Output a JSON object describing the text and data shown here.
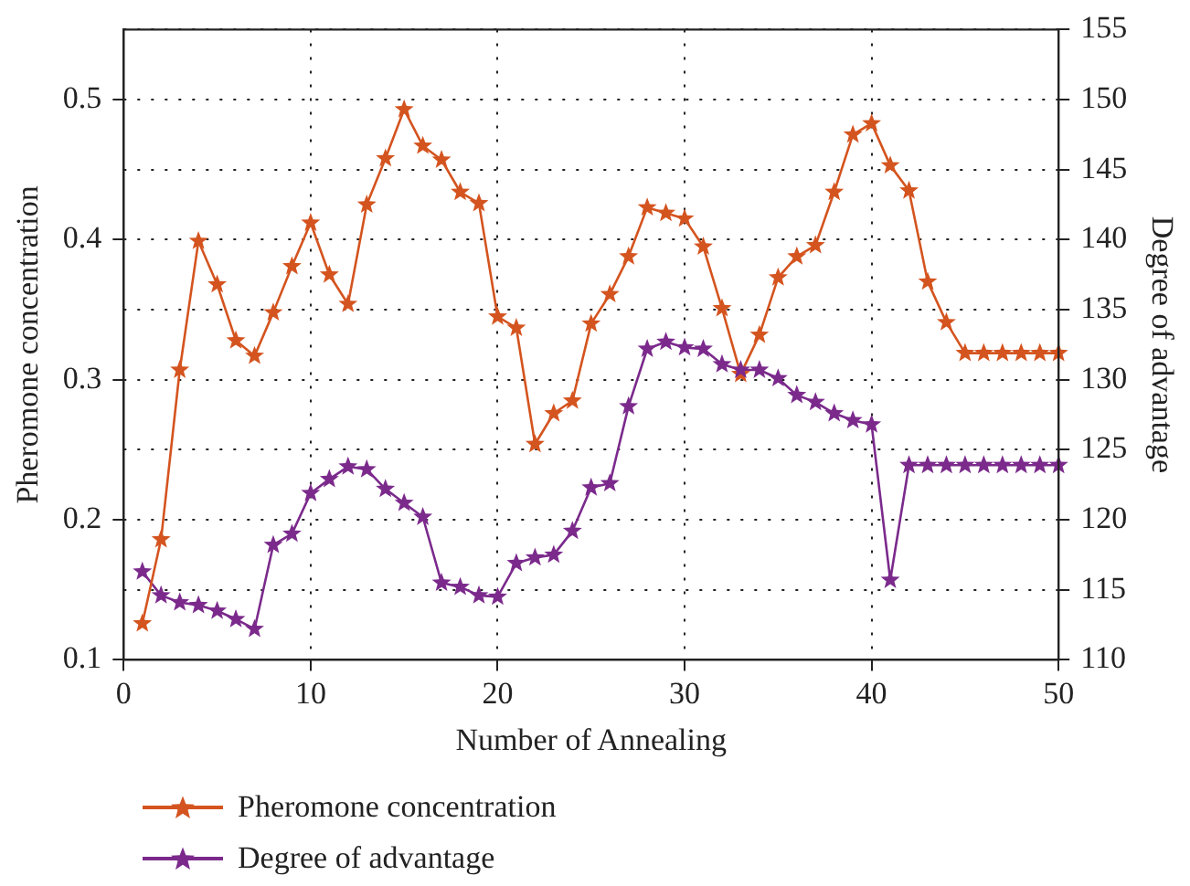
{
  "chart_data": {
    "type": "line",
    "xlabel": "Number of Annealing",
    "ylabel": "Pheromone concentration",
    "y2label": "Degree of advantage",
    "x": [
      1,
      2,
      3,
      4,
      5,
      6,
      7,
      8,
      9,
      10,
      11,
      12,
      13,
      14,
      15,
      16,
      17,
      18,
      19,
      20,
      21,
      22,
      23,
      24,
      25,
      26,
      27,
      28,
      29,
      30,
      31,
      32,
      33,
      34,
      35,
      36,
      37,
      38,
      39,
      40,
      41,
      42,
      43,
      44,
      45,
      46,
      47,
      48,
      49,
      50
    ],
    "series": [
      {
        "name": "Pheromone concentration",
        "color": "#d4541f",
        "values": [
          0.126,
          0.186,
          0.307,
          0.399,
          0.368,
          0.328,
          0.317,
          0.348,
          0.381,
          0.412,
          0.375,
          0.354,
          0.425,
          0.458,
          0.493,
          0.467,
          0.457,
          0.434,
          0.426,
          0.345,
          0.337,
          0.254,
          0.276,
          0.285,
          0.34,
          0.361,
          0.388,
          0.423,
          0.419,
          0.415,
          0.395,
          0.351,
          0.304,
          0.332,
          0.373,
          0.388,
          0.396,
          0.434,
          0.475,
          0.483,
          0.453,
          0.435,
          0.37,
          0.341,
          0.319,
          0.319,
          0.319,
          0.319,
          0.319,
          0.319
        ]
      },
      {
        "name": "Degree of advantage",
        "color": "#7b2a8c",
        "axis": "y2",
        "values": [
          116.3,
          114.6,
          114.1,
          113.9,
          113.5,
          112.9,
          112.2,
          118.2,
          119.0,
          121.9,
          122.9,
          123.8,
          123.6,
          122.2,
          121.2,
          120.2,
          115.5,
          115.2,
          114.6,
          114.5,
          116.9,
          117.3,
          117.5,
          119.2,
          122.3,
          122.6,
          128.1,
          132.2,
          132.7,
          132.3,
          132.2,
          131.1,
          130.7,
          130.7,
          130.1,
          128.9,
          128.4,
          127.6,
          127.1,
          126.8,
          115.7,
          123.9,
          123.9,
          123.9,
          123.9,
          123.9,
          123.9,
          123.9,
          123.9,
          123.9
        ]
      }
    ],
    "xlim": [
      0,
      50
    ],
    "xticks": [
      0,
      10,
      20,
      30,
      40,
      50
    ],
    "ylim": [
      0.1,
      0.55
    ],
    "yticks": [
      0.1,
      0.2,
      0.3,
      0.4,
      0.5
    ],
    "y2lim": [
      110,
      155
    ],
    "y2ticks": [
      110,
      115,
      120,
      125,
      130,
      135,
      140,
      145,
      150,
      155
    ],
    "grid": true,
    "legend": "bottom left",
    "marker": "star",
    "line_style": "solid"
  }
}
